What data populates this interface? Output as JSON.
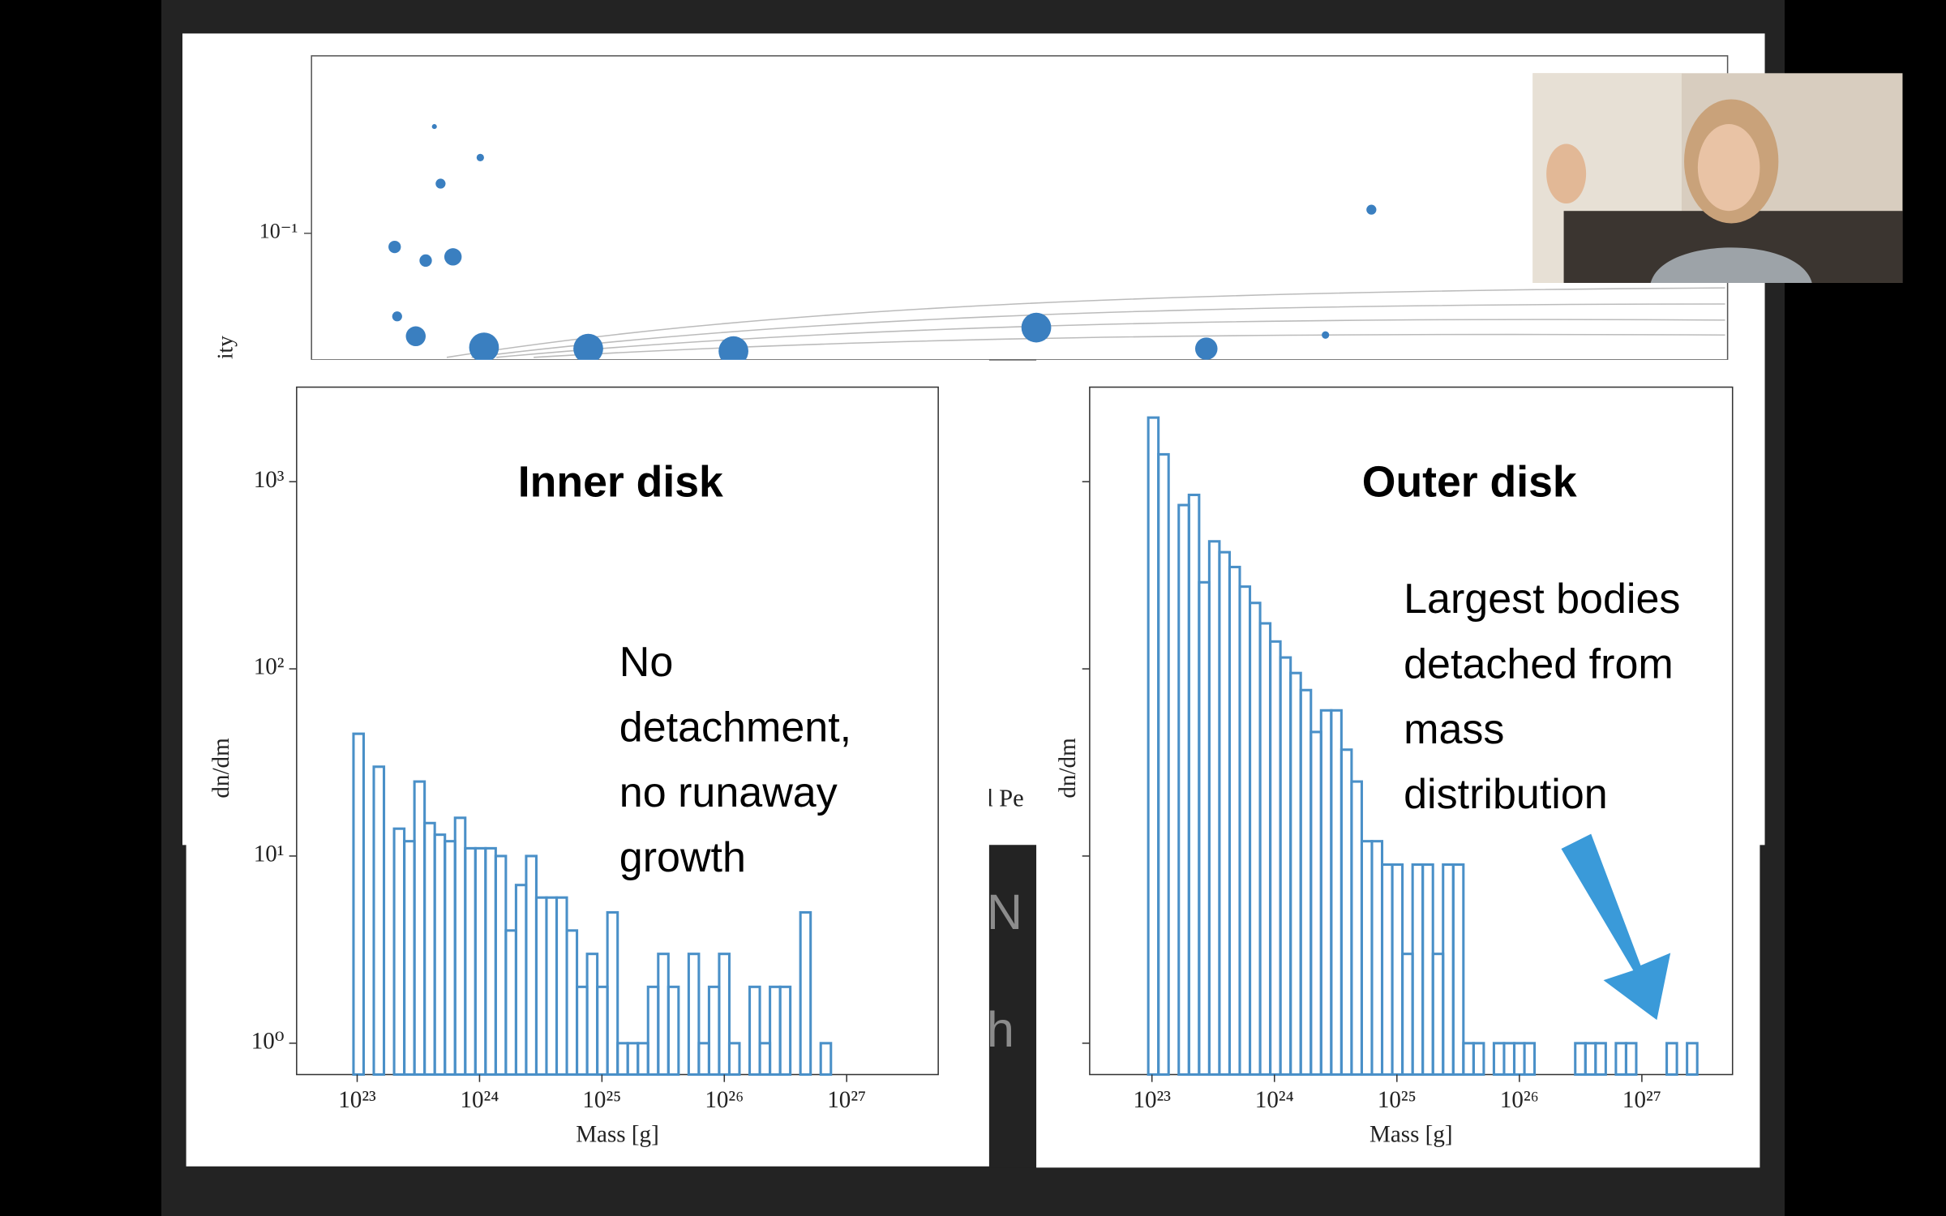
{
  "background": {
    "ytick": "10⁻¹",
    "ylabel_fragment": "ity",
    "xlabel_fragment": "d Pe",
    "fragments": [
      "N",
      "h"
    ]
  },
  "chart_data": [
    {
      "type": "histogram",
      "title": "Inner disk",
      "xlabel": "Mass [g]",
      "ylabel": "dn/dm",
      "annotation_lines": [
        "No",
        "detachment,",
        "no runaway",
        "growth"
      ],
      "log_x": true,
      "log_y": true,
      "color": "#4a90c8",
      "xlim": [
        3.2e+22,
        5.6e+27
      ],
      "ylim": [
        0.68,
        3200
      ],
      "xticks": [
        {
          "value": 1e+23,
          "label": "10²³"
        },
        {
          "value": 1e+24,
          "label": "10²⁴"
        },
        {
          "value": 1e+25,
          "label": "10²⁵"
        },
        {
          "value": 1e+26,
          "label": "10²⁶"
        },
        {
          "value": 1e+27,
          "label": "10²⁷"
        }
      ],
      "yticks": [
        {
          "value": 1,
          "label": "10⁰"
        },
        {
          "value": 10,
          "label": "10¹"
        },
        {
          "value": 100,
          "label": "10²"
        },
        {
          "value": 1000,
          "label": "10³"
        }
      ],
      "show_ytick_labels": true,
      "bins": [
        9.33e+22,
        1.129e+23,
        1.367e+23,
        1.655e+23,
        2.004e+23,
        2.426e+23,
        2.937e+23,
        3.555e+23,
        4.304e+23,
        5.211e+23,
        6.308e+23,
        7.637e+23,
        9.245e+23,
        1.119e+24,
        1.355e+24,
        1.64e+24,
        1.986e+24,
        2.404e+24,
        2.91e+24,
        3.523e+24,
        4.265e+24,
        5.163e+24,
        6.251e+24,
        7.567e+24,
        9.161e+24,
        1.109e+25,
        1.343e+25,
        1.625e+25,
        1.968e+25,
        2.382e+25,
        2.884e+25,
        3.491e+25,
        4.227e+25,
        5.117e+25,
        6.194e+25,
        7.499e+25,
        9.078e+25,
        1.099e+26,
        1.33e+26,
        1.611e+26,
        1.95e+26,
        2.361e+26,
        2.858e+26,
        3.46e+26,
        4.188e+26,
        5.07e+26,
        6.138e+26,
        7.431e+26
      ],
      "values": [
        45,
        0,
        30,
        0,
        14,
        12,
        25,
        15,
        13,
        12,
        16,
        11,
        11,
        11,
        10,
        4,
        7,
        10,
        6,
        6,
        6,
        4,
        2,
        3,
        2,
        5,
        1,
        1,
        1,
        2,
        3,
        2,
        0,
        3,
        1,
        2,
        3,
        1,
        0,
        2,
        1,
        2,
        2,
        0,
        5,
        0,
        1
      ]
    },
    {
      "type": "histogram",
      "title": "Outer disk",
      "xlabel": "Mass [g]",
      "ylabel": "dn/dm",
      "annotation_lines": [
        "Largest bodies",
        "detached from",
        "mass",
        "distribution"
      ],
      "log_x": true,
      "log_y": true,
      "color": "#4a90c8",
      "xlim": [
        3.1e+22,
        5.5e+27
      ],
      "ylim": [
        0.68,
        3200
      ],
      "xticks": [
        {
          "value": 1e+23,
          "label": "10²³"
        },
        {
          "value": 1e+24,
          "label": "10²⁴"
        },
        {
          "value": 1e+25,
          "label": "10²⁵"
        },
        {
          "value": 1e+26,
          "label": "10²⁶"
        },
        {
          "value": 1e+27,
          "label": "10²⁷"
        }
      ],
      "yticks": [
        1,
        10,
        100,
        1000
      ],
      "show_ytick_labels": false,
      "bins": [
        9.33e+22,
        1.129e+23,
        1.367e+23,
        1.655e+23,
        2.004e+23,
        2.426e+23,
        2.937e+23,
        3.555e+23,
        4.304e+23,
        5.211e+23,
        6.308e+23,
        7.637e+23,
        9.245e+23,
        1.119e+24,
        1.355e+24,
        1.64e+24,
        1.986e+24,
        2.404e+24,
        2.91e+24,
        3.523e+24,
        4.265e+24,
        5.163e+24,
        6.251e+24,
        7.567e+24,
        9.161e+24,
        1.109e+25,
        1.343e+25,
        1.625e+25,
        1.968e+25,
        2.382e+25,
        2.884e+25,
        3.491e+25,
        4.227e+25,
        5.117e+25,
        6.194e+25,
        7.499e+25,
        9.078e+25,
        1.099e+26,
        1.33e+26,
        1.611e+26,
        1.95e+26,
        2.361e+26,
        2.858e+26,
        3.46e+26,
        4.188e+26,
        5.07e+26,
        6.138e+26,
        7.431e+26,
        8.996e+26,
        1.089e+27,
        1.318e+27,
        1.596e+27,
        1.932e+27,
        2.339e+27,
        2.832e+27
      ],
      "values": [
        2200,
        1400,
        0,
        750,
        850,
        290,
        480,
        420,
        350,
        275,
        225,
        175,
        140,
        115,
        95,
        77,
        46,
        60,
        60,
        37,
        25,
        12,
        12,
        9,
        9,
        3,
        9,
        9,
        3,
        9,
        9,
        1,
        1,
        0,
        1,
        1,
        1,
        1,
        0,
        0,
        0,
        0,
        1,
        1,
        1,
        0,
        1,
        1,
        0,
        0,
        0,
        1,
        0,
        1
      ]
    }
  ]
}
